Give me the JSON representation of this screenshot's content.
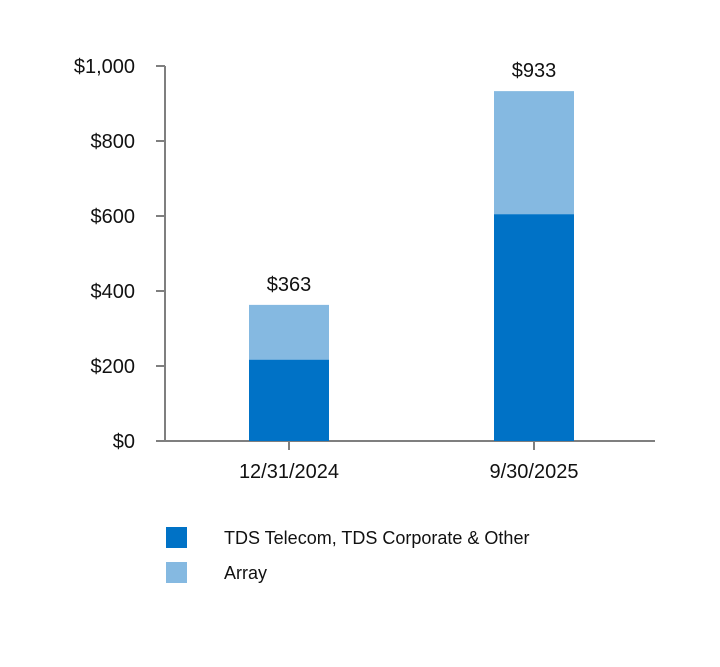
{
  "chart_data": {
    "type": "bar",
    "stacked": true,
    "title": "",
    "xlabel": "",
    "ylabel": "",
    "ylim": [
      0,
      1000
    ],
    "y_ticks": [
      0,
      200,
      400,
      600,
      800,
      1000
    ],
    "y_tick_labels": [
      "$0",
      "$200",
      "$400",
      "$600",
      "$800",
      "$1,000"
    ],
    "categories": [
      "12/31/2024",
      "9/30/2025"
    ],
    "series": [
      {
        "name": "TDS Telecom, TDS Corporate & Other",
        "color": "#0072c6",
        "values": [
          217,
          605
        ]
      },
      {
        "name": "Array",
        "color": "#85b9e1",
        "values": [
          146,
          328
        ]
      }
    ],
    "totals": [
      363,
      933
    ],
    "total_labels": [
      "$363",
      "$933"
    ],
    "legend_position": "bottom",
    "grid": false
  }
}
